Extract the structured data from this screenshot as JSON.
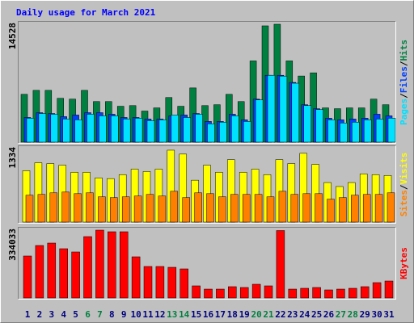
{
  "chart_data": [
    {
      "type": "bar",
      "title": "Daily usage for March 2021",
      "legend_separator": "/",
      "ylim": [
        0,
        14528
      ],
      "yticks": [
        14528
      ],
      "series": [
        {
          "name": "Hits",
          "color": "#008040",
          "values": [
            5890,
            6380,
            6380,
            5400,
            5300,
            6380,
            5000,
            5000,
            4420,
            4500,
            3830,
            4220,
            5500,
            4420,
            6680,
            4500,
            4610,
            5890,
            5000,
            10010,
            14330,
            14528,
            10010,
            8150,
            8540,
            4220,
            4120,
            4220,
            4220,
            5300,
            4610
          ]
        },
        {
          "name": "Files",
          "color": "#0040FF",
          "values": [
            3040,
            3630,
            3530,
            3140,
            3340,
            3630,
            3630,
            3440,
            3040,
            3040,
            2850,
            2850,
            3240,
            3340,
            3530,
            2550,
            2550,
            3440,
            2750,
            5300,
            8240,
            8240,
            7360,
            4610,
            4120,
            2950,
            2750,
            2850,
            2950,
            3440,
            3240
          ]
        },
        {
          "name": "Pages",
          "color": "#00E0FF",
          "values": [
            2950,
            3530,
            3440,
            2850,
            2750,
            3440,
            3240,
            3240,
            2850,
            2950,
            2650,
            2750,
            3340,
            3040,
            3440,
            2260,
            2460,
            3240,
            2550,
            5200,
            8240,
            8140,
            7260,
            4510,
            4020,
            2750,
            2360,
            2460,
            2750,
            2850,
            2950
          ]
        }
      ]
    },
    {
      "type": "bar",
      "legend_separator": "/",
      "ylim": [
        0,
        1334
      ],
      "yticks": [
        1334
      ],
      "series": [
        {
          "name": "Visits",
          "color": "#FFFF00",
          "values": [
            932,
            1076,
            1062,
            1033,
            904,
            904,
            803,
            789,
            861,
            961,
            918,
            961,
            1305,
            1234,
            760,
            1033,
            904,
            1133,
            904,
            961,
            861,
            1133,
            1062,
            1248,
            1047,
            717,
            645,
            717,
            875,
            861,
            846
          ]
        },
        {
          "name": "Sites",
          "color": "#FF8000",
          "values": [
            488,
            502,
            531,
            545,
            516,
            531,
            459,
            445,
            459,
            473,
            502,
            473,
            559,
            445,
            531,
            516,
            459,
            502,
            502,
            502,
            459,
            559,
            502,
            516,
            516,
            416,
            445,
            488,
            502,
            502,
            531
          ]
        }
      ]
    },
    {
      "type": "bar",
      "legend_separator": "/",
      "ylim": [
        0,
        334033
      ],
      "yticks": [
        334033
      ],
      "categories": [
        "1",
        "2",
        "3",
        "4",
        "5",
        "6",
        "7",
        "8",
        "9",
        "10",
        "11",
        "12",
        "13",
        "14",
        "15",
        "16",
        "17",
        "18",
        "19",
        "20",
        "21",
        "22",
        "23",
        "24",
        "25",
        "26",
        "27",
        "28",
        "29",
        "30",
        "31"
      ],
      "category_colors": [
        "#000080",
        "#000080",
        "#000080",
        "#000080",
        "#000080",
        "#008040",
        "#008040",
        "#000080",
        "#000080",
        "#000080",
        "#000080",
        "#000080",
        "#008040",
        "#008040",
        "#000080",
        "#000080",
        "#000080",
        "#000080",
        "#000080",
        "#008040",
        "#008040",
        "#000080",
        "#000080",
        "#000080",
        "#000080",
        "#000080",
        "#008040",
        "#008040",
        "#000080",
        "#000080",
        "#000080"
      ],
      "series": [
        {
          "name": "KBytes",
          "color": "#FF0000",
          "values": [
            206800,
            258500,
            270400,
            242600,
            226700,
            302200,
            334033,
            326100,
            326100,
            202800,
            155100,
            155100,
            151100,
            143200,
            59700,
            43700,
            43700,
            55700,
            51700,
            67600,
            59700,
            332000,
            43700,
            47700,
            51700,
            39800,
            43700,
            47700,
            55700,
            75600,
            83500
          ]
        }
      ]
    }
  ]
}
